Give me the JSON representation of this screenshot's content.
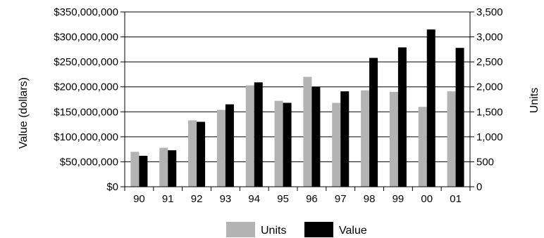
{
  "chart_data": {
    "type": "bar",
    "categories": [
      "90",
      "91",
      "92",
      "93",
      "94",
      "95",
      "96",
      "97",
      "98",
      "99",
      "00",
      "01"
    ],
    "series": [
      {
        "name": "Units",
        "axis": "right",
        "color": "#b3b3b3",
        "values": [
          700,
          780,
          1330,
          1540,
          2030,
          1720,
          2200,
          1680,
          1930,
          1900,
          1600,
          1910
        ]
      },
      {
        "name": "Value",
        "axis": "left",
        "color": "#000000",
        "values": [
          62000000,
          73000000,
          130000000,
          165000000,
          209000000,
          168000000,
          200000000,
          191000000,
          258000000,
          279000000,
          315000000,
          278000000
        ]
      }
    ],
    "ylabel": "Value (dollars)",
    "ylabel_right": "Units",
    "ylim": [
      0,
      350000000
    ],
    "ylim_right": [
      0,
      3500
    ],
    "yticks": [
      "$0",
      "$50,000,000",
      "$100,000,000",
      "$150,000,000",
      "$200,000,000",
      "$250,000,000",
      "$300,000,000",
      "$350,000,000"
    ],
    "yticks_right": [
      "0",
      "500",
      "1,000",
      "1,500",
      "2,000",
      "2,500",
      "3,000",
      "3,500"
    ],
    "grid": true,
    "legend": "bottom"
  }
}
